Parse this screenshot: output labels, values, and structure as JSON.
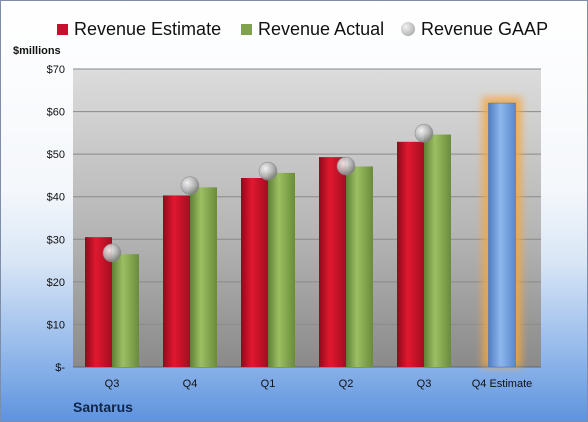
{
  "chart_data": {
    "type": "bar",
    "title": "",
    "ylabel": "$millions",
    "xlabel": "",
    "ylim": [
      0,
      70
    ],
    "yticks": [
      {
        "value": 0,
        "label": "$-"
      },
      {
        "value": 10,
        "label": "$10"
      },
      {
        "value": 20,
        "label": "$20"
      },
      {
        "value": 30,
        "label": "$30"
      },
      {
        "value": 40,
        "label": "$40"
      },
      {
        "value": 50,
        "label": "$50"
      },
      {
        "value": 60,
        "label": "$60"
      },
      {
        "value": 70,
        "label": "$70"
      }
    ],
    "categories": [
      "Q3",
      "Q4",
      "Q1",
      "Q2",
      "Q3",
      "Q4 Estimate"
    ],
    "series": [
      {
        "name": "Revenue Estimate",
        "kind": "bar",
        "color": "#c8102e",
        "values": [
          30.5,
          40.3,
          44.4,
          49.3,
          52.9,
          62.0
        ]
      },
      {
        "name": "Revenue Actual",
        "kind": "bar",
        "color": "#7fa24a",
        "values": [
          26.5,
          42.2,
          45.6,
          47.1,
          54.6,
          null
        ]
      },
      {
        "name": "Revenue GAAP",
        "kind": "marker",
        "color": "#a8a8a8",
        "values": [
          26.8,
          42.6,
          46.0,
          47.2,
          54.9,
          null
        ]
      }
    ],
    "highlight": {
      "category": "Q4 Estimate",
      "color": "#6f9fdc",
      "glow": "#f5a742"
    },
    "legend_position": "top",
    "grid": true
  },
  "unit_label": "$millions",
  "company": "Santarus"
}
